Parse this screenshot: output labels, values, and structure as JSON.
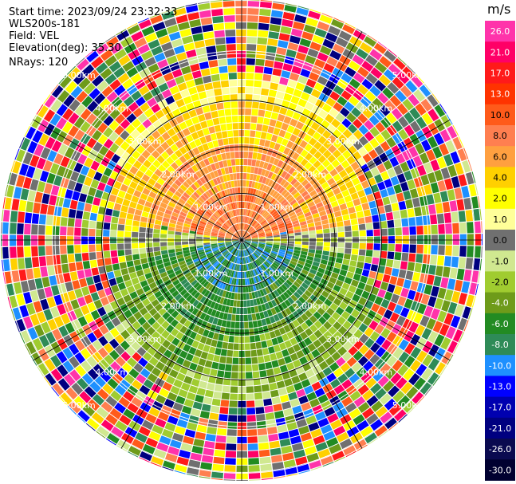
{
  "header": {
    "start_time": "Start time: 2023/09/24 23:32:33",
    "instrument": "WLS200s-181",
    "field": "Field: VEL",
    "elevation": "Elevation(deg): 35.30",
    "nrays": "NRays: 120"
  },
  "colorbar": {
    "unit": "m/s",
    "ticks": [
      "26.0",
      "21.0",
      "17.0",
      "13.0",
      "10.0",
      "8.0",
      "6.0",
      "4.0",
      "2.0",
      "1.0",
      "0.0",
      "-1.0",
      "-2.0",
      "-4.0",
      "-6.0",
      "-8.0",
      "-10.0",
      "-13.0",
      "-17.0",
      "-21.0",
      "-26.0",
      "-30.0"
    ],
    "colors": [
      "#ff33aa",
      "#ff0066",
      "#ff1a1a",
      "#ff3300",
      "#ff5a1a",
      "#ff7f50",
      "#ffa040",
      "#ffd000",
      "#ffff00",
      "#ffff99",
      "#707070",
      "#d0e890",
      "#a0cc30",
      "#6e9b1a",
      "#228b22",
      "#2e8b57",
      "#1e90ff",
      "#0000ff",
      "#0000b0",
      "#000080",
      "#0a0a50",
      "#000030"
    ]
  },
  "range_rings": {
    "labels": [
      "1.00km",
      "2.00km",
      "3.00km",
      "4.00km",
      "5.00km"
    ],
    "center_mark": "S"
  },
  "diagram": {
    "type": "lidar-ppi-radial-velocity",
    "rays": 120,
    "noise_rings": "beyond 3 km"
  }
}
